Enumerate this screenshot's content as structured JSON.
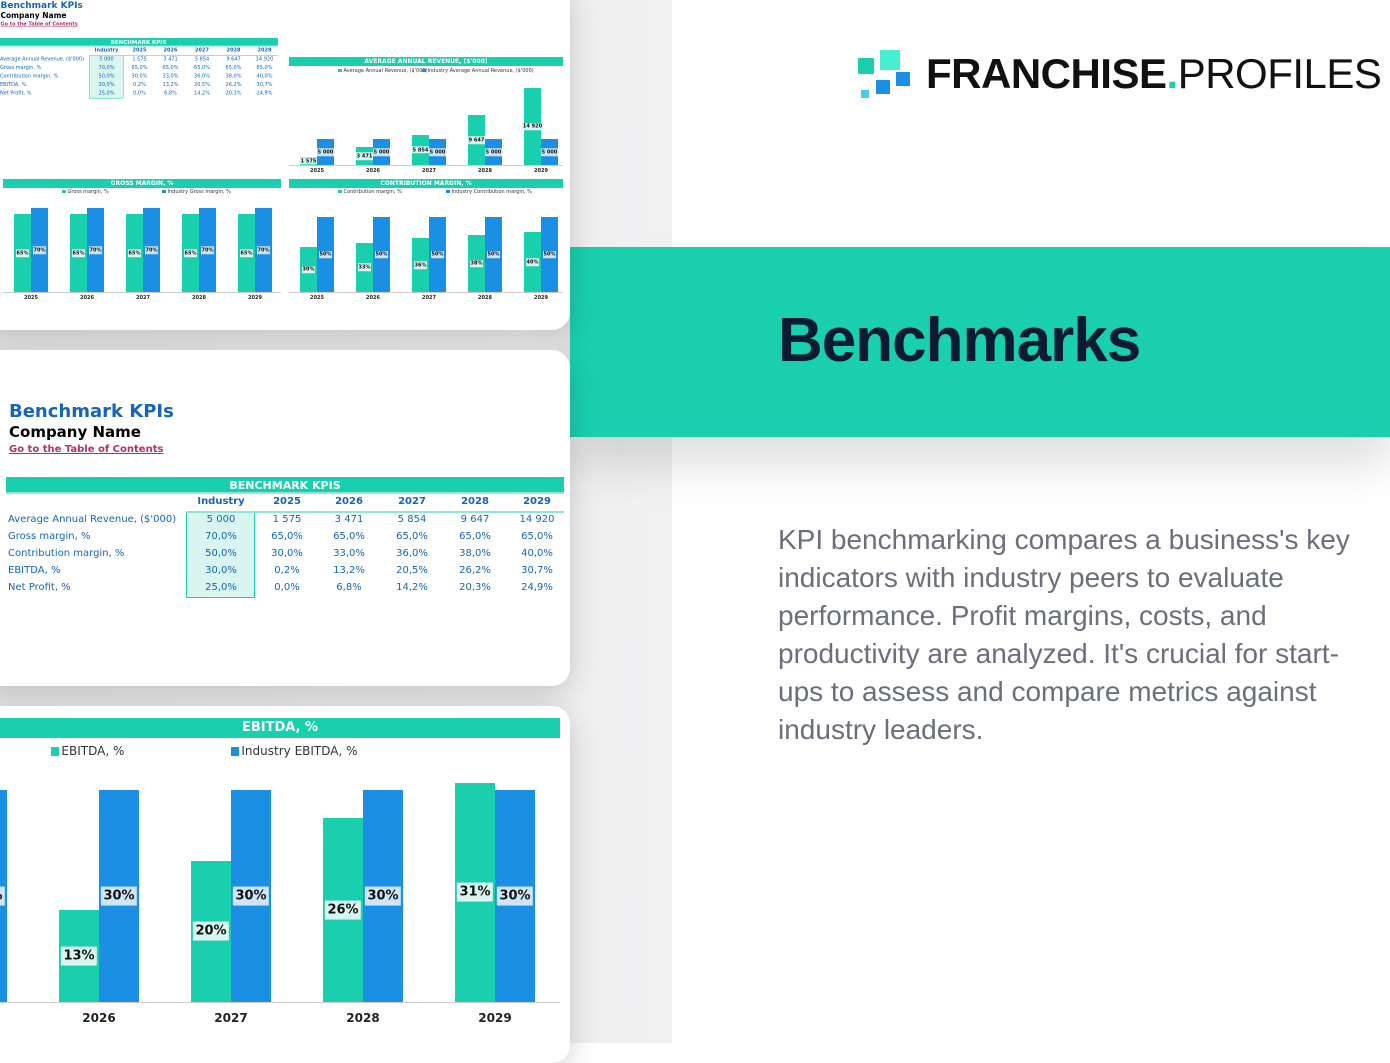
{
  "brand": {
    "name_bold": "FRANCHISE",
    "dot": ".",
    "name_light": "PROFILES",
    "colors": {
      "teal": "#19cfad",
      "blue": "#1a8fe3",
      "logo_sq1": "#19cfad",
      "logo_sq2": "#45efd0",
      "logo_sq3": "#1a8fe3",
      "logo_sq4": "#47c8f5"
    }
  },
  "heading": "Benchmarks",
  "description": "KPI benchmarking compares a business's key indicators with industry peers to evaluate performance. Profit margins, costs, and productivity are analyzed. It's crucial for start-ups to assess and compare metrics against industry leaders.",
  "kpi": {
    "title": "Benchmark KPIs",
    "company": "Company Name",
    "toc_link": "Go to the Table of Contents",
    "table_title": "BENCHMARK KPIS",
    "columns": [
      "Industry",
      "2025",
      "2026",
      "2027",
      "2028",
      "2029"
    ],
    "rows": [
      {
        "label": "Average Annual Revenue, ($'000)",
        "values": [
          "5 000",
          "1 575",
          "3 471",
          "5 854",
          "9 647",
          "14 920"
        ]
      },
      {
        "label": "Gross margin, %",
        "values": [
          "70,0%",
          "65,0%",
          "65,0%",
          "65,0%",
          "65,0%",
          "65,0%"
        ]
      },
      {
        "label": "Contribution margin, %",
        "values": [
          "50,0%",
          "30,0%",
          "33,0%",
          "36,0%",
          "38,0%",
          "40,0%"
        ]
      },
      {
        "label": "EBITDA, %",
        "values": [
          "30,0%",
          "0,2%",
          "13,2%",
          "20,5%",
          "26,2%",
          "30,7%"
        ]
      },
      {
        "label": "Net Profit, %",
        "values": [
          "25,0%",
          "0,0%",
          "6,8%",
          "14,2%",
          "20,3%",
          "24,9%"
        ]
      }
    ]
  },
  "chart_data": [
    {
      "id": "revenue",
      "type": "bar",
      "title": "AVERAGE ANNUAL REVENUE, ($'000)",
      "categories": [
        "2025",
        "2026",
        "2027",
        "2028",
        "2029"
      ],
      "format": "thousands",
      "legend_position": "top",
      "series": [
        {
          "name": "Average Annual Revenue, ($'000)",
          "color": "#19cfad",
          "values": [
            1575,
            3471,
            5854,
            9647,
            14920
          ]
        },
        {
          "name": "Industry Average Annual Revenue, ($'000)",
          "color": "#1a8fe3",
          "values": [
            5000,
            5000,
            5000,
            5000,
            5000
          ]
        }
      ]
    },
    {
      "id": "gross",
      "type": "bar",
      "title": "GROSS MARGIN, %",
      "categories": [
        "2025",
        "2026",
        "2027",
        "2028",
        "2029"
      ],
      "format": "percent",
      "legend_position": "top",
      "series": [
        {
          "name": "Gross margin, %",
          "color": "#19cfad",
          "values": [
            65,
            65,
            65,
            65,
            65
          ]
        },
        {
          "name": "Industry Gross margin, %",
          "color": "#1a8fe3",
          "values": [
            70,
            70,
            70,
            70,
            70
          ]
        }
      ]
    },
    {
      "id": "contribution",
      "type": "bar",
      "title": "CONTRIBUTION MARGIN, %",
      "categories": [
        "2025",
        "2026",
        "2027",
        "2028",
        "2029"
      ],
      "format": "percent",
      "legend_position": "top",
      "series": [
        {
          "name": "Contribution margin, %",
          "color": "#19cfad",
          "values": [
            30,
            33,
            36,
            38,
            40
          ]
        },
        {
          "name": "Industry Contribution margin, %",
          "color": "#1a8fe3",
          "values": [
            50,
            50,
            50,
            50,
            50
          ]
        }
      ]
    },
    {
      "id": "ebitda",
      "type": "bar",
      "title": "EBITDA, %",
      "categories": [
        "2025",
        "2026",
        "2027",
        "2028",
        "2029"
      ],
      "format": "percent",
      "legend_position": "top",
      "series": [
        {
          "name": "EBITDA, %",
          "color": "#19cfad",
          "values": [
            0,
            13,
            20,
            26,
            31
          ]
        },
        {
          "name": "Industry EBITDA, %",
          "color": "#1a8fe3",
          "values": [
            30,
            30,
            30,
            30,
            30
          ]
        }
      ]
    }
  ]
}
